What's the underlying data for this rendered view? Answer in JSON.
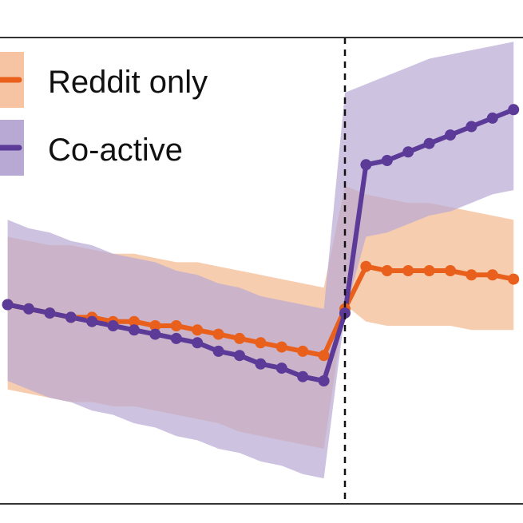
{
  "chart_data": {
    "type": "line",
    "title": "",
    "xlabel": "",
    "ylabel": "",
    "xlim": [
      -16,
      8.5
    ],
    "ylim": [
      -4.5,
      6.5
    ],
    "event_x": 0,
    "grid": false,
    "legend_placement": "top-left",
    "series": [
      {
        "name": "Reddit only",
        "color": "#e8601c",
        "band_color": "#f6c4a2",
        "x": [
          -16,
          -15,
          -14,
          -13,
          -12,
          -11,
          -10,
          -9,
          -8,
          -7,
          -6,
          -5,
          -4,
          -3,
          -2,
          -1,
          0,
          1,
          2,
          3,
          4,
          5,
          6,
          7,
          8
        ],
        "y": [
          0.2,
          0.1,
          0,
          -0.1,
          -0.1,
          -0.2,
          -0.2,
          -0.3,
          -0.3,
          -0.4,
          -0.5,
          -0.6,
          -0.7,
          -0.8,
          -0.9,
          -1.0,
          0.1,
          1.1,
          1.0,
          1.0,
          1.0,
          1.0,
          0.9,
          0.9,
          0.8
        ],
        "lower": [
          -1.8,
          -1.9,
          -2.0,
          -2.1,
          -2.1,
          -2.2,
          -2.2,
          -2.3,
          -2.4,
          -2.5,
          -2.6,
          -2.8,
          -2.9,
          -3.0,
          -3.1,
          -3.2,
          0.2,
          -0.2,
          -0.3,
          -0.3,
          -0.3,
          -0.3,
          -0.4,
          -0.4,
          -0.4
        ],
        "upper": [
          1.8,
          1.7,
          1.6,
          1.6,
          1.5,
          1.4,
          1.4,
          1.3,
          1.2,
          1.2,
          1.1,
          1.0,
          0.9,
          0.8,
          0.7,
          0.6,
          3.0,
          2.8,
          2.7,
          2.6,
          2.6,
          2.5,
          2.4,
          2.3,
          2.2
        ]
      },
      {
        "name": "Co-active",
        "color": "#5b3a98",
        "band_color": "#b8a9d4",
        "x": [
          -16,
          -15,
          -14,
          -13,
          -12,
          -11,
          -10,
          -9,
          -8,
          -7,
          -6,
          -5,
          -4,
          -3,
          -2,
          -1,
          0,
          1,
          2,
          3,
          4,
          5,
          6,
          7,
          8
        ],
        "y": [
          0.2,
          0.1,
          0,
          -0.1,
          -0.2,
          -0.3,
          -0.4,
          -0.5,
          -0.6,
          -0.7,
          -0.9,
          -1.0,
          -1.2,
          -1.3,
          -1.5,
          -1.6,
          0,
          3.5,
          3.6,
          3.8,
          4.0,
          4.2,
          4.4,
          4.6,
          4.8
        ],
        "lower": [
          -1.6,
          -1.8,
          -2.0,
          -2.1,
          -2.3,
          -2.4,
          -2.6,
          -2.7,
          -2.9,
          -3.0,
          -3.2,
          -3.3,
          -3.5,
          -3.6,
          -3.8,
          -3.9,
          0,
          1.8,
          1.9,
          2.1,
          2.3,
          2.4,
          2.6,
          2.8,
          2.9
        ],
        "upper": [
          2.2,
          2.0,
          1.9,
          1.7,
          1.6,
          1.4,
          1.3,
          1.2,
          1.0,
          0.9,
          0.7,
          0.6,
          0.4,
          0.3,
          0.2,
          0.1,
          5.2,
          5.4,
          5.6,
          5.8,
          6.0,
          6.1,
          6.2,
          6.3,
          6.4
        ]
      }
    ]
  }
}
